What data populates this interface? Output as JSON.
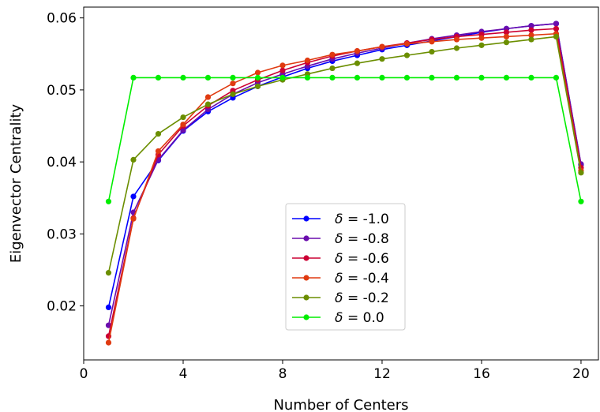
{
  "chart_data": {
    "type": "line",
    "title": "",
    "xlabel": "Number of Centers",
    "ylabel": "Eigenvector Centrality",
    "xlim": [
      0,
      20.7
    ],
    "ylim": [
      0.0125,
      0.0615
    ],
    "xticks": [
      0,
      4,
      8,
      12,
      16,
      20
    ],
    "yticks": [
      0.02,
      0.03,
      0.04,
      0.05,
      0.06
    ],
    "ytick_labels": [
      "0.02",
      "0.03",
      "0.04",
      "0.05",
      "0.06"
    ],
    "grid": false,
    "legend_position": "lower center",
    "x": [
      1,
      2,
      3,
      4,
      5,
      6,
      7,
      8,
      9,
      10,
      11,
      12,
      13,
      14,
      15,
      16,
      17,
      18,
      19,
      20
    ],
    "series": [
      {
        "name": "δ = -1.0",
        "symbol": "δ",
        "value_text": "= -1.0",
        "color": "#0000ff",
        "values": [
          0.0198,
          0.0352,
          0.0402,
          0.0443,
          0.047,
          0.0489,
          0.0505,
          0.0518,
          0.053,
          0.054,
          0.0548,
          0.0556,
          0.0562,
          0.0568,
          0.0574,
          0.058,
          0.0585,
          0.0589,
          0.0592,
          0.0396
        ]
      },
      {
        "name": "δ = -0.8",
        "symbol": "δ",
        "value_text": "= -0.8",
        "color": "#6a0dad",
        "values": [
          0.0173,
          0.033,
          0.0403,
          0.0444,
          0.0473,
          0.0494,
          0.051,
          0.0522,
          0.0533,
          0.0543,
          0.0551,
          0.0558,
          0.0565,
          0.0571,
          0.0576,
          0.0581,
          0.0585,
          0.0589,
          0.0592,
          0.0397
        ]
      },
      {
        "name": "δ = -0.6",
        "symbol": "δ",
        "value_text": "= -0.6",
        "color": "#cc0033",
        "values": [
          0.0158,
          0.0322,
          0.041,
          0.045,
          0.0478,
          0.0499,
          0.0514,
          0.0527,
          0.0538,
          0.0547,
          0.0554,
          0.056,
          0.0565,
          0.057,
          0.0574,
          0.0577,
          0.058,
          0.0583,
          0.0585,
          0.0392
        ]
      },
      {
        "name": "δ = -0.4",
        "symbol": "δ",
        "value_text": "= -0.4",
        "color": "#e03a10",
        "values": [
          0.0149,
          0.0321,
          0.0415,
          0.0452,
          0.049,
          0.0509,
          0.0524,
          0.0534,
          0.0541,
          0.0549,
          0.0554,
          0.056,
          0.0564,
          0.0567,
          0.057,
          0.0572,
          0.0574,
          0.0576,
          0.0578,
          0.0388
        ]
      },
      {
        "name": "δ = -0.2",
        "symbol": "δ",
        "value_text": "= -0.2",
        "color": "#6b8e00",
        "values": [
          0.0246,
          0.0403,
          0.0439,
          0.0462,
          0.048,
          0.0494,
          0.0505,
          0.0514,
          0.0522,
          0.053,
          0.0537,
          0.0543,
          0.0548,
          0.0553,
          0.0558,
          0.0562,
          0.0566,
          0.057,
          0.0574,
          0.0385
        ]
      },
      {
        "name": "δ = 0.0",
        "symbol": "δ",
        "value_text": "= 0.0",
        "color": "#00ee00",
        "values": [
          0.0345,
          0.0517,
          0.0517,
          0.0517,
          0.0517,
          0.0517,
          0.0517,
          0.0517,
          0.0517,
          0.0517,
          0.0517,
          0.0517,
          0.0517,
          0.0517,
          0.0517,
          0.0517,
          0.0517,
          0.0517,
          0.0517,
          0.0345
        ]
      }
    ]
  }
}
